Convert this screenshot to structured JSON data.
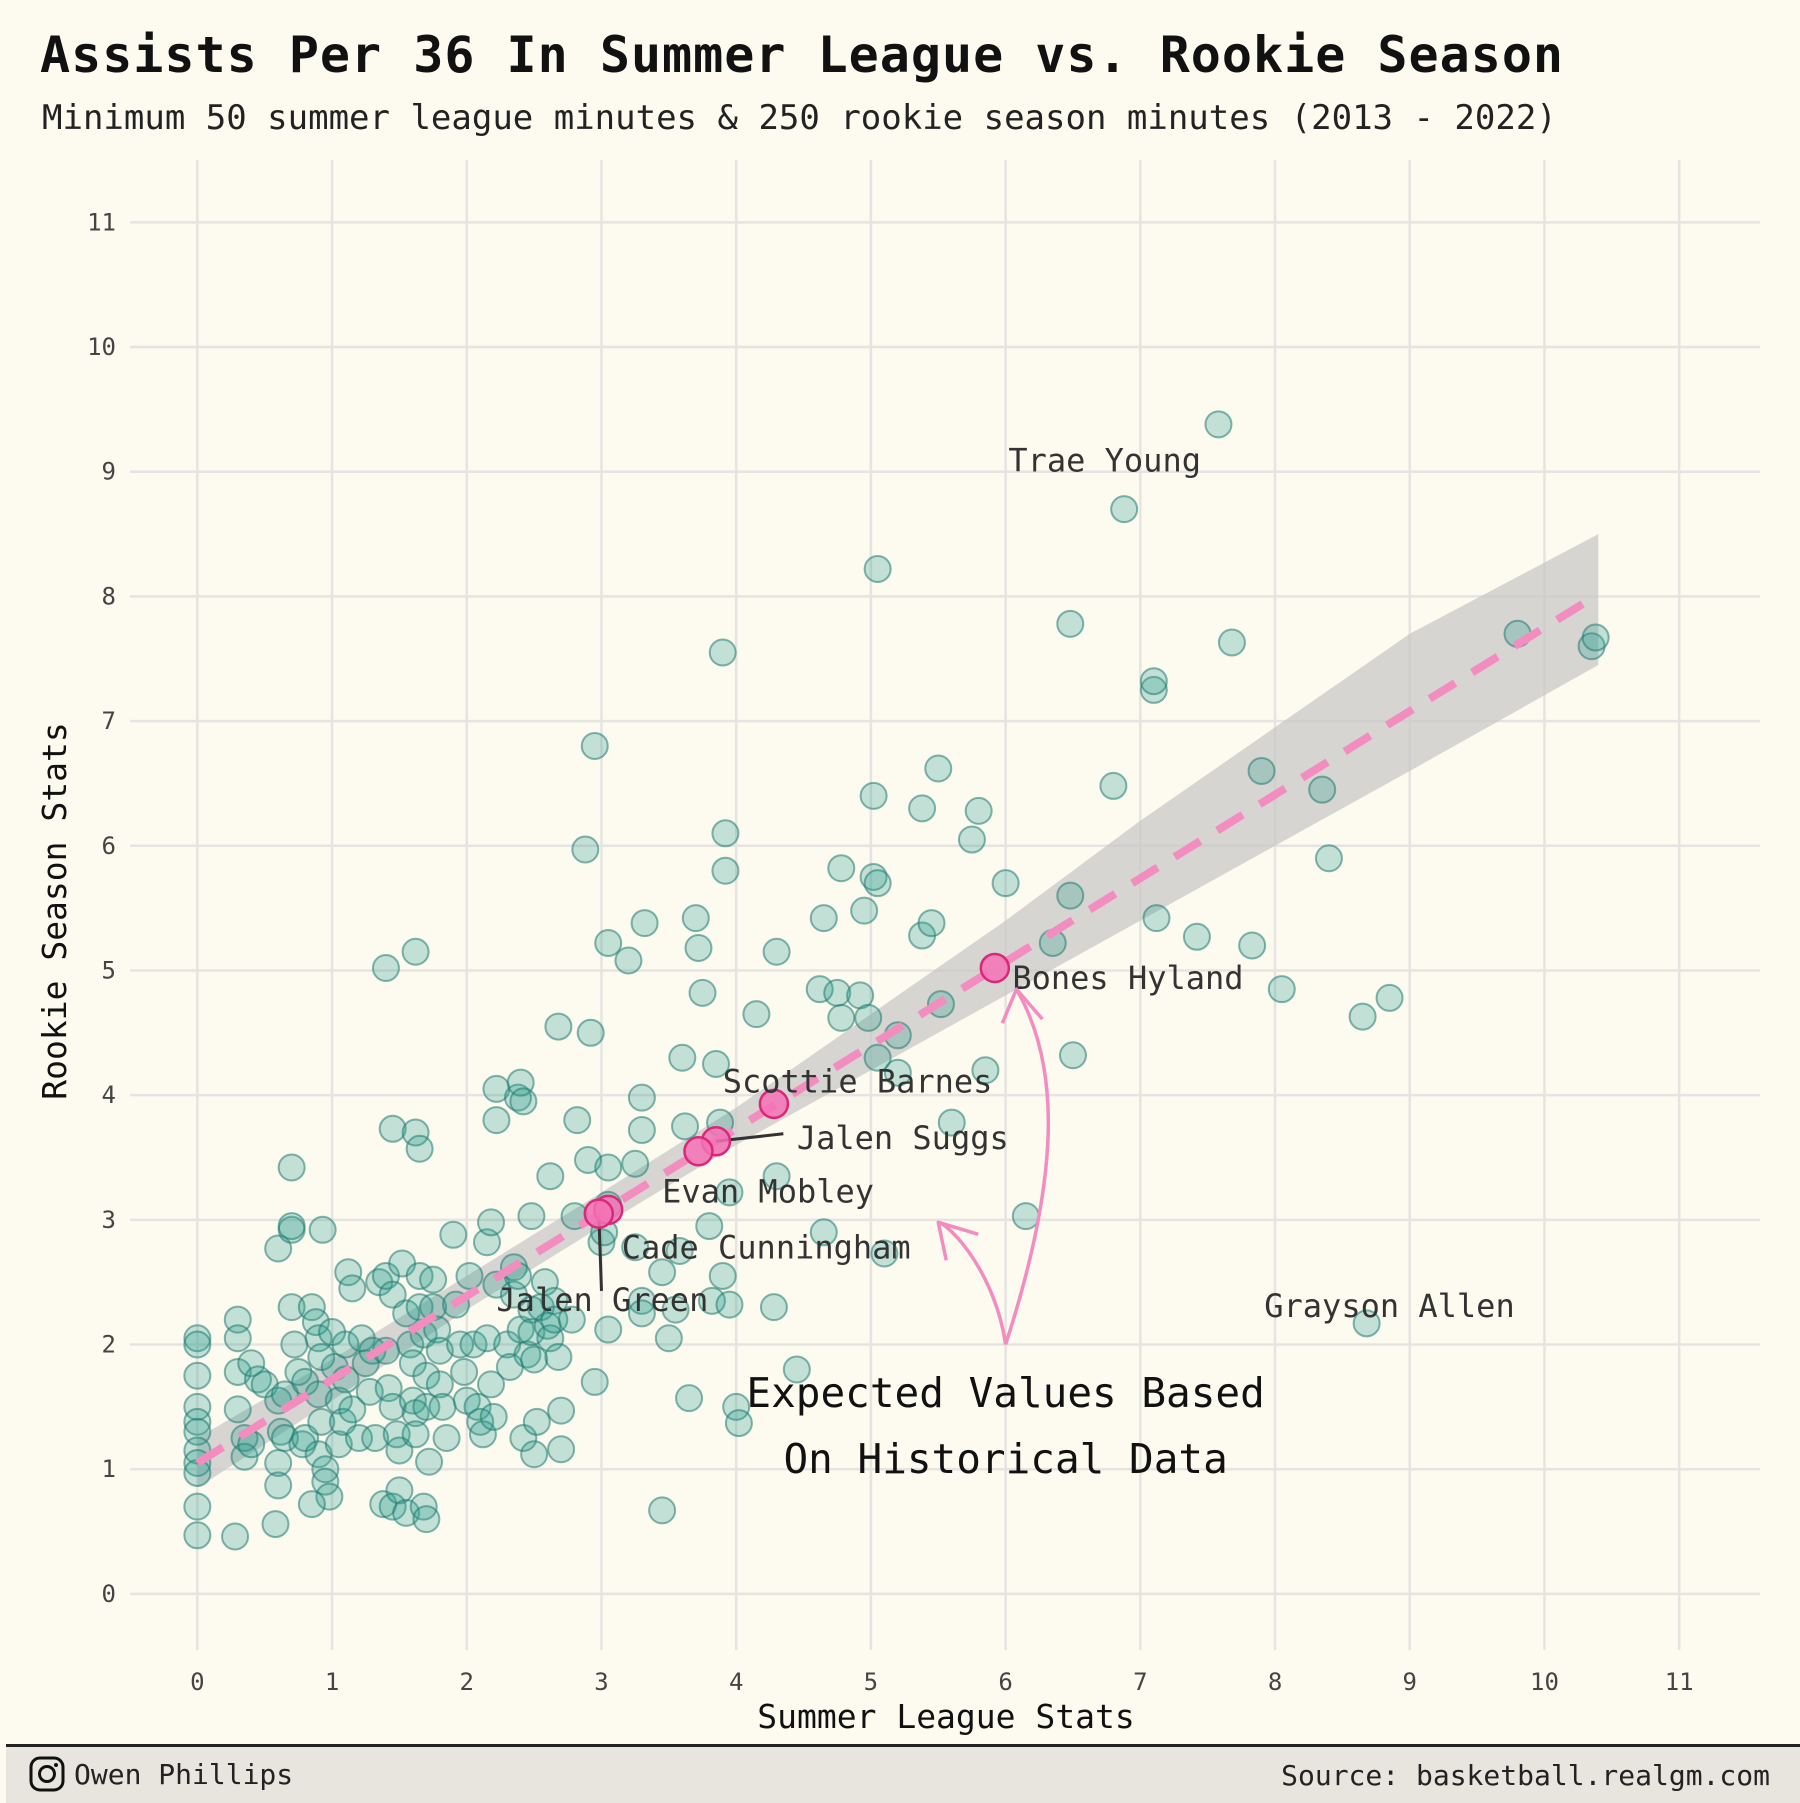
{
  "chart_data": {
    "type": "scatter",
    "title": "Assists Per 36 In Summer League vs. Rookie Season",
    "subtitle": "Minimum 50 summer league minutes & 250 rookie season minutes (2013 - 2022)",
    "xlabel": "Summer League Stats",
    "ylabel": "Rookie Season Stats",
    "xlim": [
      -0.5,
      11.6
    ],
    "ylim": [
      -0.45,
      11.5
    ],
    "xticks": [
      0,
      1,
      2,
      3,
      4,
      5,
      6,
      7,
      8,
      9,
      10,
      11
    ],
    "yticks": [
      0,
      1,
      2,
      3,
      4,
      5,
      6,
      7,
      8,
      9,
      10,
      11
    ],
    "grid": true,
    "colors": {
      "points": "#2a9d8f",
      "highlight": "#f472b6",
      "trend": "#f38cbf",
      "band": "#c8c8c8"
    },
    "trend": {
      "intercept": 1.05,
      "slope": 0.67,
      "x_range": [
        0,
        10.4
      ]
    },
    "confidence_band": [
      [
        0,
        0.85,
        1.25
      ],
      [
        1,
        1.55,
        1.88
      ],
      [
        2,
        2.28,
        2.55
      ],
      [
        3,
        2.95,
        3.22
      ],
      [
        4,
        3.6,
        3.9
      ],
      [
        5,
        4.2,
        4.65
      ],
      [
        6,
        4.8,
        5.4
      ],
      [
        7,
        5.4,
        6.2
      ],
      [
        8,
        6.0,
        6.95
      ],
      [
        9,
        6.6,
        7.7
      ],
      [
        10.4,
        7.45,
        8.5
      ]
    ],
    "points": [
      [
        0,
        2.05
      ],
      [
        0,
        2.0
      ],
      [
        0,
        1.75
      ],
      [
        0,
        1.5
      ],
      [
        0,
        1.38
      ],
      [
        0,
        1.3
      ],
      [
        0,
        1.15
      ],
      [
        0,
        1.05
      ],
      [
        0,
        0.97
      ],
      [
        0,
        0.7
      ],
      [
        0,
        0.47
      ],
      [
        0.3,
        2.2
      ],
      [
        0.3,
        2.05
      ],
      [
        0.3,
        1.78
      ],
      [
        0.3,
        1.48
      ],
      [
        0.35,
        1.25
      ],
      [
        0.35,
        1.1
      ],
      [
        0.4,
        1.85
      ],
      [
        0.4,
        1.2
      ],
      [
        0.45,
        1.72
      ],
      [
        0.5,
        1.68
      ],
      [
        0.28,
        0.46
      ],
      [
        0.6,
        1.55
      ],
      [
        0.65,
        1.6
      ],
      [
        0.62,
        1.3
      ],
      [
        0.6,
        1.05
      ],
      [
        0.6,
        0.87
      ],
      [
        0.65,
        1.25
      ],
      [
        0.7,
        2.3
      ],
      [
        0.72,
        2.0
      ],
      [
        0.75,
        1.78
      ],
      [
        0.78,
        1.2
      ],
      [
        0.8,
        1.7
      ],
      [
        0.8,
        1.25
      ],
      [
        0.6,
        2.77
      ],
      [
        0.7,
        2.92
      ],
      [
        0.7,
        2.95
      ],
      [
        0.7,
        3.42
      ],
      [
        0.58,
        0.56
      ],
      [
        0.85,
        2.3
      ],
      [
        0.88,
        2.18
      ],
      [
        0.9,
        2.05
      ],
      [
        0.92,
        1.9
      ],
      [
        0.9,
        1.6
      ],
      [
        0.92,
        1.38
      ],
      [
        0.9,
        1.12
      ],
      [
        0.95,
        1.0
      ],
      [
        0.95,
        0.9
      ],
      [
        0.98,
        0.78
      ],
      [
        0.85,
        0.72
      ],
      [
        0.93,
        2.92
      ],
      [
        1.0,
        2.1
      ],
      [
        1.02,
        1.82
      ],
      [
        1.05,
        1.55
      ],
      [
        1.05,
        1.2
      ],
      [
        1.08,
        1.38
      ],
      [
        1.1,
        1.72
      ],
      [
        1.1,
        2.0
      ],
      [
        1.12,
        2.58
      ],
      [
        1.15,
        2.45
      ],
      [
        1.15,
        1.48
      ],
      [
        1.2,
        1.25
      ],
      [
        1.22,
        2.05
      ],
      [
        1.25,
        1.85
      ],
      [
        1.28,
        1.62
      ],
      [
        1.3,
        1.95
      ],
      [
        1.32,
        1.25
      ],
      [
        1.35,
        2.5
      ],
      [
        1.4,
        2.55
      ],
      [
        1.45,
        2.4
      ],
      [
        1.4,
        1.95
      ],
      [
        1.42,
        1.65
      ],
      [
        1.45,
        1.5
      ],
      [
        1.48,
        1.28
      ],
      [
        1.5,
        1.15
      ],
      [
        1.38,
        0.72
      ],
      [
        1.45,
        0.7
      ],
      [
        1.5,
        0.83
      ],
      [
        1.55,
        0.65
      ],
      [
        1.4,
        5.02
      ],
      [
        1.45,
        3.73
      ],
      [
        1.52,
        2.65
      ],
      [
        1.55,
        2.25
      ],
      [
        1.58,
        2.0
      ],
      [
        1.6,
        1.85
      ],
      [
        1.6,
        1.55
      ],
      [
        1.62,
        1.45
      ],
      [
        1.62,
        1.28
      ],
      [
        1.65,
        2.55
      ],
      [
        1.65,
        2.3
      ],
      [
        1.68,
        2.08
      ],
      [
        1.7,
        1.75
      ],
      [
        1.7,
        1.5
      ],
      [
        1.62,
        5.15
      ],
      [
        1.62,
        3.7
      ],
      [
        1.65,
        3.57
      ],
      [
        1.68,
        0.7
      ],
      [
        1.7,
        0.6
      ],
      [
        1.75,
        2.52
      ],
      [
        1.75,
        2.3
      ],
      [
        1.78,
        2.12
      ],
      [
        1.8,
        1.95
      ],
      [
        1.8,
        1.68
      ],
      [
        1.82,
        1.5
      ],
      [
        1.85,
        1.25
      ],
      [
        1.72,
        1.06
      ],
      [
        1.9,
        2.88
      ],
      [
        1.92,
        2.32
      ],
      [
        1.95,
        2.0
      ],
      [
        1.98,
        1.78
      ],
      [
        2.0,
        1.55
      ],
      [
        2.02,
        2.55
      ],
      [
        2.05,
        2.0
      ],
      [
        2.08,
        1.5
      ],
      [
        2.1,
        1.38
      ],
      [
        2.12,
        1.28
      ],
      [
        2.15,
        2.82
      ],
      [
        2.15,
        2.05
      ],
      [
        2.18,
        1.68
      ],
      [
        2.2,
        1.42
      ],
      [
        2.22,
        2.48
      ],
      [
        2.22,
        4.05
      ],
      [
        2.22,
        3.8
      ],
      [
        2.18,
        2.98
      ],
      [
        2.3,
        2.0
      ],
      [
        2.32,
        1.82
      ],
      [
        2.35,
        2.4
      ],
      [
        2.35,
        2.62
      ],
      [
        2.38,
        2.55
      ],
      [
        2.4,
        2.12
      ],
      [
        2.38,
        3.98
      ],
      [
        2.4,
        4.1
      ],
      [
        2.42,
        3.95
      ],
      [
        2.42,
        1.25
      ],
      [
        2.45,
        1.92
      ],
      [
        2.48,
        2.28
      ],
      [
        2.48,
        2.1
      ],
      [
        2.5,
        1.88
      ],
      [
        2.5,
        1.12
      ],
      [
        2.52,
        1.38
      ],
      [
        2.48,
        3.03
      ],
      [
        2.55,
        2.3
      ],
      [
        2.58,
        2.5
      ],
      [
        2.6,
        2.15
      ],
      [
        2.62,
        2.05
      ],
      [
        2.62,
        3.35
      ],
      [
        2.65,
        2.35
      ],
      [
        2.65,
        2.2
      ],
      [
        2.68,
        1.9
      ],
      [
        2.7,
        1.16
      ],
      [
        2.7,
        1.47
      ],
      [
        2.68,
        4.55
      ],
      [
        2.78,
        2.2
      ],
      [
        2.8,
        3.03
      ],
      [
        2.82,
        3.8
      ],
      [
        2.9,
        3.48
      ],
      [
        2.88,
        5.97
      ],
      [
        2.92,
        4.5
      ],
      [
        2.95,
        6.8
      ],
      [
        2.95,
        1.7
      ],
      [
        3.0,
        2.82
      ],
      [
        3.02,
        2.9
      ],
      [
        3.05,
        3.12
      ],
      [
        3.05,
        3.42
      ],
      [
        3.05,
        5.22
      ],
      [
        3.2,
        5.08
      ],
      [
        3.25,
        3.45
      ],
      [
        3.25,
        2.78
      ],
      [
        3.3,
        3.72
      ],
      [
        3.3,
        3.98
      ],
      [
        3.32,
        5.38
      ],
      [
        3.3,
        2.35
      ],
      [
        3.3,
        2.25
      ],
      [
        3.05,
        2.12
      ],
      [
        3.45,
        2.58
      ],
      [
        3.45,
        0.67
      ],
      [
        3.5,
        2.05
      ],
      [
        3.55,
        2.28
      ],
      [
        3.58,
        2.75
      ],
      [
        3.6,
        4.3
      ],
      [
        3.62,
        3.75
      ],
      [
        3.65,
        1.57
      ],
      [
        3.7,
        5.42
      ],
      [
        3.72,
        5.18
      ],
      [
        3.75,
        4.82
      ],
      [
        3.8,
        2.95
      ],
      [
        3.82,
        2.35
      ],
      [
        3.85,
        4.25
      ],
      [
        3.88,
        3.78
      ],
      [
        3.9,
        7.55
      ],
      [
        3.9,
        2.55
      ],
      [
        3.92,
        6.1
      ],
      [
        3.92,
        5.8
      ],
      [
        3.95,
        3.22
      ],
      [
        3.95,
        2.32
      ],
      [
        4.0,
        1.5
      ],
      [
        4.02,
        1.37
      ],
      [
        4.15,
        4.65
      ],
      [
        4.3,
        5.15
      ],
      [
        4.3,
        3.35
      ],
      [
        4.28,
        2.3
      ],
      [
        4.45,
        1.8
      ],
      [
        4.62,
        4.85
      ],
      [
        4.65,
        5.42
      ],
      [
        4.65,
        2.9
      ],
      [
        4.75,
        4.82
      ],
      [
        4.78,
        5.82
      ],
      [
        4.78,
        4.62
      ],
      [
        4.92,
        4.8
      ],
      [
        4.95,
        5.48
      ],
      [
        4.98,
        4.62
      ],
      [
        5.02,
        5.75
      ],
      [
        5.05,
        5.7
      ],
      [
        5.02,
        6.4
      ],
      [
        5.05,
        4.3
      ],
      [
        5.05,
        8.22
      ],
      [
        5.1,
        2.73
      ],
      [
        5.2,
        4.48
      ],
      [
        5.2,
        4.18
      ],
      [
        5.38,
        6.3
      ],
      [
        5.38,
        5.28
      ],
      [
        5.45,
        5.38
      ],
      [
        5.5,
        6.62
      ],
      [
        5.52,
        4.73
      ],
      [
        5.6,
        3.78
      ],
      [
        5.75,
        6.05
      ],
      [
        5.8,
        6.28
      ],
      [
        5.85,
        4.2
      ],
      [
        6.0,
        5.7
      ],
      [
        6.15,
        3.03
      ],
      [
        6.35,
        5.22
      ],
      [
        6.48,
        7.78
      ],
      [
        6.48,
        5.6
      ],
      [
        6.5,
        4.32
      ],
      [
        6.8,
        6.48
      ],
      [
        6.88,
        8.7
      ],
      [
        7.1,
        7.25
      ],
      [
        7.1,
        7.32
      ],
      [
        7.12,
        5.42
      ],
      [
        7.42,
        5.27
      ],
      [
        7.58,
        9.38
      ],
      [
        7.68,
        7.63
      ],
      [
        7.83,
        5.2
      ],
      [
        7.9,
        6.6
      ],
      [
        8.05,
        4.85
      ],
      [
        8.35,
        6.45
      ],
      [
        8.4,
        5.9
      ],
      [
        8.65,
        4.63
      ],
      [
        8.85,
        4.78
      ],
      [
        8.68,
        2.17
      ],
      [
        9.8,
        7.7
      ],
      [
        10.35,
        7.6
      ],
      [
        10.38,
        7.67
      ]
    ],
    "highlighted": [
      {
        "name": "Bones Hyland",
        "x": 5.92,
        "y": 5.02
      },
      {
        "name": "Scottie Barnes",
        "x": 4.28,
        "y": 3.93
      },
      {
        "name": "Jalen Suggs",
        "x": 3.85,
        "y": 3.63
      },
      {
        "name": "Evan Mobley",
        "x": 3.72,
        "y": 3.55
      },
      {
        "name": "Cade Cunningham",
        "x": 3.05,
        "y": 3.08
      },
      {
        "name": "Jalen Green",
        "x": 2.98,
        "y": 3.05
      }
    ],
    "labels": [
      {
        "text": "Trae Young",
        "x": 6.02,
        "y": 9.0
      },
      {
        "text": "Bones Hyland",
        "x": 6.05,
        "y": 4.85
      },
      {
        "text": "Scottie Barnes",
        "x": 3.9,
        "y": 4.02
      },
      {
        "text": "Jalen Suggs",
        "x": 4.45,
        "y": 3.57
      },
      {
        "text": "Evan Mobley",
        "x": 3.45,
        "y": 3.14
      },
      {
        "text": "Cade Cunningham",
        "x": 3.15,
        "y": 2.69
      },
      {
        "text": "Jalen Green",
        "x": 2.22,
        "y": 2.27
      },
      {
        "text": "Grayson Allen",
        "x": 7.92,
        "y": 2.22
      }
    ],
    "annotation": {
      "lines": [
        "Expected Values Based",
        "On Historical Data"
      ],
      "x": 6.0,
      "y": 1.5
    }
  },
  "footer": {
    "author": "Owen Phillips",
    "source": "Source: basketball.realgm.com",
    "icon": "instagram-icon"
  }
}
